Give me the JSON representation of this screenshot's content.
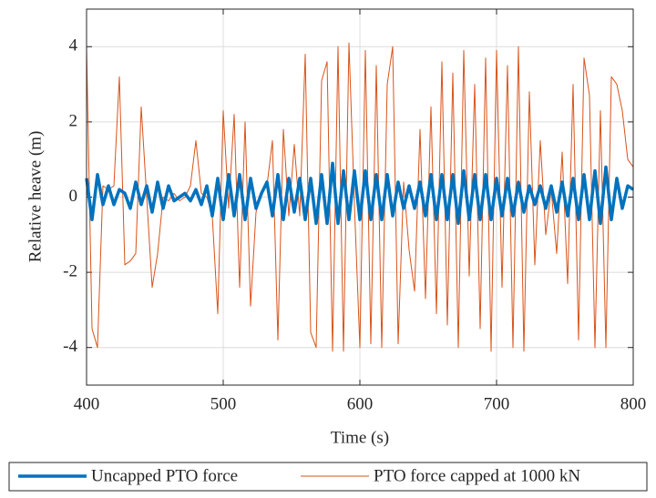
{
  "chart_data": {
    "type": "line",
    "xlabel": "Time (s)",
    "ylabel": "Relative heave (m)",
    "x": [
      400,
      404,
      408,
      412,
      416,
      420,
      424,
      428,
      432,
      436,
      440,
      444,
      448,
      452,
      456,
      460,
      464,
      468,
      472,
      476,
      480,
      484,
      488,
      492,
      496,
      500,
      504,
      508,
      512,
      516,
      520,
      524,
      528,
      532,
      536,
      540,
      544,
      548,
      552,
      556,
      560,
      564,
      568,
      572,
      576,
      580,
      584,
      588,
      592,
      596,
      600,
      604,
      608,
      612,
      616,
      620,
      624,
      628,
      632,
      636,
      640,
      644,
      648,
      652,
      656,
      660,
      664,
      668,
      672,
      676,
      680,
      684,
      688,
      692,
      696,
      700,
      704,
      708,
      712,
      716,
      720,
      724,
      728,
      732,
      736,
      740,
      744,
      748,
      752,
      756,
      760,
      764,
      768,
      772,
      776,
      780,
      784,
      788,
      792,
      796,
      800
    ],
    "series": [
      {
        "name": "Uncapped PTO force",
        "color": "#0072bd",
        "line_width": 3.5,
        "values": [
          0.5,
          -0.6,
          0.6,
          -0.2,
          0.3,
          -0.2,
          0.2,
          0.1,
          -0.3,
          0.4,
          -0.2,
          0.3,
          -0.4,
          0.4,
          -0.3,
          0.3,
          -0.1,
          0.0,
          0.1,
          -0.1,
          0.2,
          -0.2,
          0.3,
          -0.5,
          0.5,
          -0.6,
          0.6,
          -0.5,
          0.6,
          -0.6,
          0.5,
          -0.3,
          0.1,
          0.4,
          -0.5,
          0.6,
          -0.6,
          0.5,
          -0.4,
          0.5,
          -0.6,
          0.5,
          -0.7,
          0.6,
          -0.7,
          0.9,
          -0.7,
          0.7,
          -0.6,
          0.7,
          -0.6,
          0.7,
          -0.6,
          0.6,
          -0.6,
          0.6,
          -0.5,
          0.4,
          -0.3,
          0.3,
          -0.3,
          0.4,
          -0.5,
          0.6,
          -0.6,
          0.6,
          -0.6,
          0.6,
          -0.7,
          0.7,
          -0.6,
          0.6,
          -0.6,
          0.6,
          -0.6,
          0.5,
          -0.5,
          0.5,
          -0.5,
          0.4,
          -0.4,
          0.3,
          -0.2,
          0.3,
          -0.3,
          0.3,
          -0.4,
          0.4,
          -0.5,
          0.5,
          -0.6,
          0.6,
          -0.6,
          0.7,
          -0.7,
          0.8,
          -0.6,
          0.5,
          -0.3,
          0.3,
          0.2
        ]
      },
      {
        "name": "PTO force capped at 1000 kN",
        "color": "#d95319",
        "line_width": 1,
        "values": [
          4.0,
          -3.5,
          -4.0,
          0.3,
          0.2,
          0.3,
          3.2,
          -1.8,
          -1.7,
          -1.5,
          2.4,
          0.0,
          -2.4,
          -1.5,
          0.0,
          -0.1,
          0.1,
          -0.1,
          0.0,
          0.3,
          1.5,
          0.1,
          0.0,
          -0.5,
          -3.1,
          2.3,
          -0.3,
          2.2,
          -2.4,
          2.0,
          -2.9,
          -0.4,
          0.1,
          0.3,
          1.5,
          -3.8,
          1.8,
          -0.5,
          1.4,
          -0.5,
          3.8,
          -3.6,
          -4.0,
          3.1,
          3.6,
          -4.1,
          4.0,
          -4.1,
          4.1,
          -0.2,
          -4.0,
          3.9,
          -3.9,
          3.5,
          -4.0,
          3.0,
          4.0,
          -3.9,
          0.4,
          -1.4,
          -2.5,
          1.8,
          -2.7,
          2.4,
          -3.1,
          3.6,
          -3.4,
          3.3,
          -4.0,
          3.9,
          -2.1,
          3.0,
          -3.5,
          3.7,
          -4.1,
          3.9,
          -2.4,
          3.5,
          -4.0,
          4.0,
          -4.1,
          2.8,
          -1.8,
          1.5,
          -1.0,
          0.2,
          -1.5,
          1.2,
          -2.3,
          3.0,
          -3.8,
          3.7,
          2.7,
          -4.0,
          2.3,
          -4.0,
          3.2,
          3.0,
          2.3,
          1.0,
          0.8
        ]
      }
    ],
    "xlim": [
      400,
      800
    ],
    "ylim": [
      -5,
      5
    ],
    "xticks": [
      400,
      500,
      600,
      700,
      800
    ],
    "yticks": [
      -4,
      -2,
      0,
      2,
      4
    ],
    "grid": true,
    "legend": "below"
  }
}
